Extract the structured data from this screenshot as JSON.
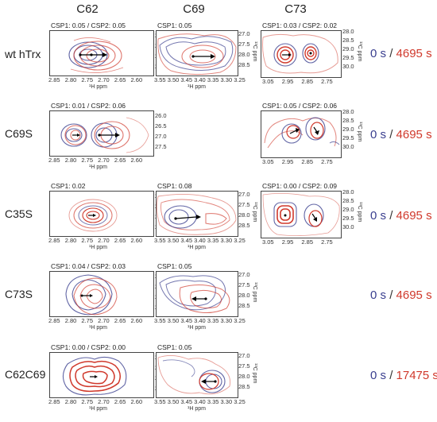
{
  "columns": [
    "C62",
    "C69",
    "C73"
  ],
  "axis_labels": {
    "h": "¹H ppm",
    "c": "¹³C ppm"
  },
  "colors": {
    "time0": "#3a3f8f",
    "time_end": "#d0392c",
    "arrow": "#000000"
  },
  "ticks": {
    "c62_x": [
      "2.85",
      "2.80",
      "2.75",
      "2.70",
      "2.65",
      "2.60"
    ],
    "c62_y": [
      "26.0",
      "26.5",
      "27.0",
      "27.5"
    ],
    "c69_x": [
      "3.55",
      "3.50",
      "3.45",
      "3.40",
      "3.35",
      "3.30",
      "3.25"
    ],
    "c69_y": [
      "27.0",
      "27.5",
      "28.0",
      "28.5"
    ],
    "c73_x": [
      "3.05",
      "2.95",
      "2.85",
      "2.75"
    ],
    "c73_y": [
      "28.0",
      "28.5",
      "29.0",
      "29.5",
      "30.0"
    ]
  },
  "rows": [
    {
      "label": "wt hTrx",
      "c62_csp": "CSP1: 0.05  /  CSP2: 0.05",
      "c69_csp": "CSP1: 0.05",
      "c73_csp": "CSP1: 0.03  /  CSP2: 0.02",
      "t0": "0 s",
      "sep": "/",
      "t1": "4695 s"
    },
    {
      "label": "C69S",
      "c62_csp": "CSP1: 0.01  /  CSP2: 0.06",
      "c73_csp": "CSP1: 0.05  /  CSP2: 0.06",
      "t0": "0 s",
      "sep": "/",
      "t1": "4695 s"
    },
    {
      "label": "C35S",
      "c62_csp": "CSP1: 0.02",
      "c69_csp": "CSP1: 0.08",
      "c73_csp": "CSP1: 0.00  /  CSP2: 0.09",
      "t0": "0 s",
      "sep": "/",
      "t1": "4695 s"
    },
    {
      "label": "C73S",
      "c62_csp": "CSP1: 0.04  /  CSP2: 0.03",
      "c69_csp": "CSP1: 0.05",
      "t0": "0 s",
      "sep": "/",
      "t1": "4695 s"
    },
    {
      "label": "C62C69",
      "c62_csp": "CSP1: 0.00  /  CSP2: 0.00",
      "c69_csp": "CSP1: 0.05",
      "t0": "0 s",
      "sep": "/",
      "t1": "17475 s"
    }
  ]
}
